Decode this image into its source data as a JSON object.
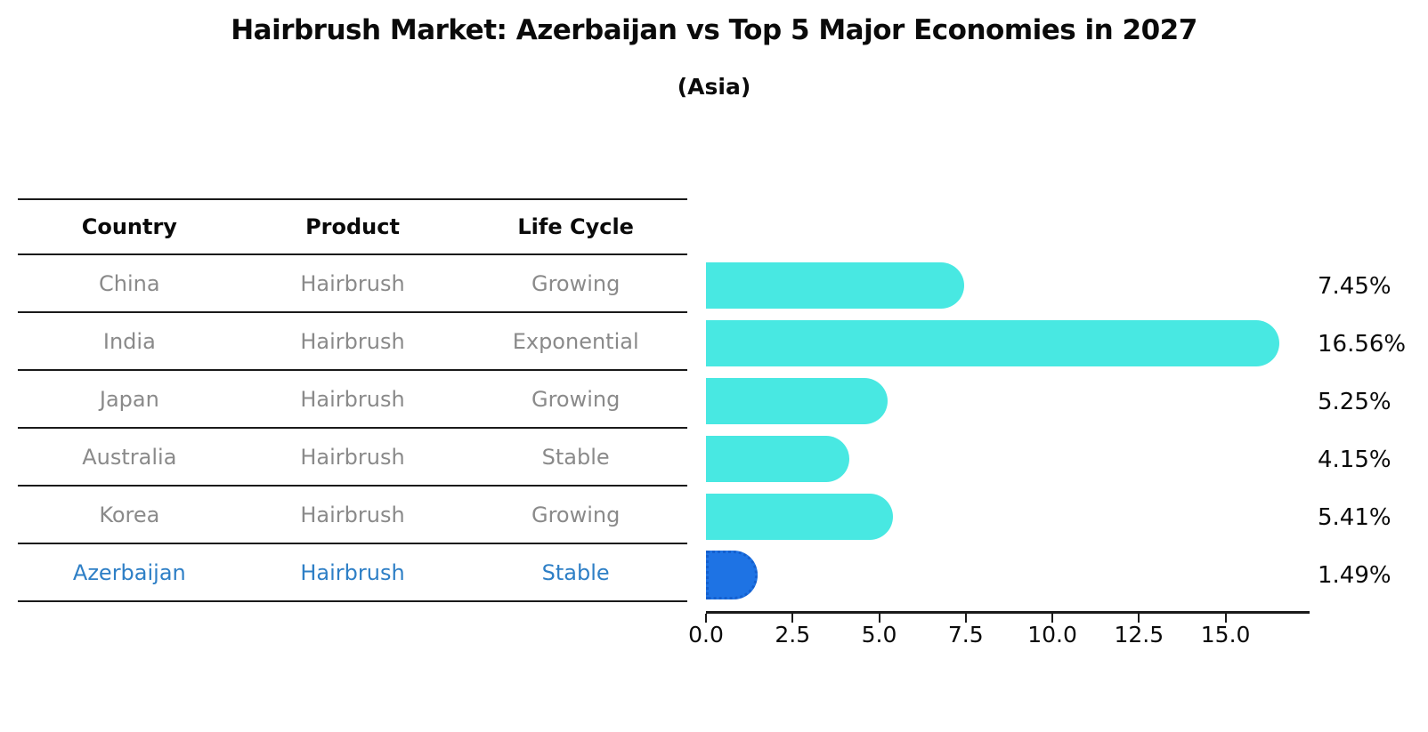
{
  "title": "Hairbrush Market: Azerbaijan vs Top 5 Major Economies in 2027",
  "subtitle": "(Asia)",
  "table": {
    "headers": [
      "Country",
      "Product",
      "Life Cycle"
    ],
    "rows": [
      {
        "country": "China",
        "product": "Hairbrush",
        "life_cycle": "Growing",
        "highlight": false
      },
      {
        "country": "India",
        "product": "Hairbrush",
        "life_cycle": "Exponential",
        "highlight": false
      },
      {
        "country": "Japan",
        "product": "Hairbrush",
        "life_cycle": "Growing",
        "highlight": false
      },
      {
        "country": "Australia",
        "product": "Hairbrush",
        "life_cycle": "Stable",
        "highlight": false
      },
      {
        "country": "Korea",
        "product": "Hairbrush",
        "life_cycle": "Growing",
        "highlight": false
      },
      {
        "country": "Azerbaijan",
        "product": "Hairbrush",
        "life_cycle": "Stable",
        "highlight": true
      }
    ]
  },
  "chart_data": {
    "type": "bar",
    "orientation": "horizontal",
    "title": "Hairbrush Market: Azerbaijan vs Top 5 Major Economies in 2027",
    "subtitle": "(Asia)",
    "categories": [
      "China",
      "India",
      "Japan",
      "Australia",
      "Korea",
      "Azerbaijan"
    ],
    "values": [
      7.45,
      16.56,
      5.25,
      4.15,
      5.41,
      1.49
    ],
    "labels": [
      "7.45%",
      "16.56%",
      "5.25%",
      "4.15%",
      "5.41%",
      "1.49%"
    ],
    "highlight_index": 5,
    "xlim": [
      0,
      17.4
    ],
    "x_ticks": [
      "0.0",
      "2.5",
      "5.0",
      "7.5",
      "10.0",
      "12.5",
      "15.0"
    ],
    "x_tick_values": [
      0,
      2.5,
      5,
      7.5,
      10,
      12.5,
      15
    ],
    "grid": false,
    "legend": "none"
  },
  "colors": {
    "bar": "#48E8E2",
    "highlight_bar": "#1E73E4",
    "highlight_bar_border": "#145FCE",
    "highlight_text": "#2E7FC6",
    "row_text": "#8A8A8A"
  }
}
